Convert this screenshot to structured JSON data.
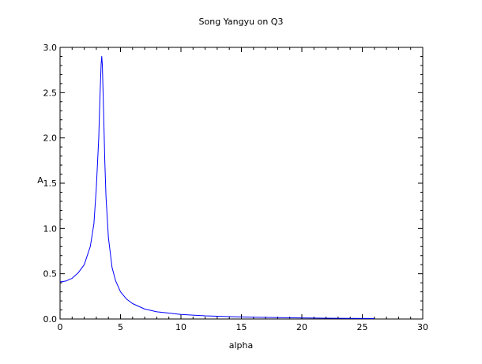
{
  "chart_data": {
    "type": "line",
    "title": "Song Yangyu on Q3",
    "xlabel": "alpha",
    "ylabel": "A",
    "xlim": [
      0,
      30
    ],
    "ylim": [
      0,
      3.0
    ],
    "xticks": [
      0,
      5,
      10,
      15,
      20,
      25,
      30
    ],
    "xtick_labels": [
      "0",
      "5",
      "10",
      "15",
      "20",
      "25",
      "30"
    ],
    "yticks": [
      0,
      0.5,
      1.0,
      1.5,
      2.0,
      2.5,
      3.0
    ],
    "ytick_labels": [
      "0.0",
      "0.5",
      "1.0",
      "1.5",
      "2.0",
      "2.5",
      "3.0"
    ],
    "grid": false,
    "series": [
      {
        "color": "#0000ff",
        "x": [
          0,
          0.5,
          1.0,
          1.5,
          2.0,
          2.5,
          2.8,
          3.0,
          3.2,
          3.3,
          3.4,
          3.45,
          3.5,
          3.6,
          3.7,
          3.8,
          4.0,
          4.3,
          4.6,
          5.0,
          5.5,
          6.0,
          7.0,
          8.0,
          9.0,
          10.0,
          12.0,
          14.0,
          16.0,
          18.0,
          20.0,
          22.0,
          24.0,
          26.0
        ],
        "y": [
          0.41,
          0.42,
          0.45,
          0.51,
          0.6,
          0.8,
          1.05,
          1.45,
          2.0,
          2.45,
          2.82,
          2.9,
          2.8,
          2.3,
          1.75,
          1.35,
          0.9,
          0.57,
          0.42,
          0.3,
          0.22,
          0.17,
          0.11,
          0.08,
          0.065,
          0.05,
          0.035,
          0.026,
          0.02,
          0.015,
          0.012,
          0.009,
          0.007,
          0.005
        ]
      }
    ]
  }
}
